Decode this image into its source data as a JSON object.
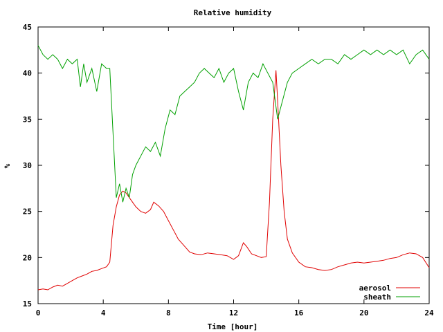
{
  "chart_data": {
    "type": "line",
    "title": "Relative humidity",
    "xlabel": "Time [hour]",
    "ylabel": "%",
    "xlim": [
      0,
      24
    ],
    "ylim": [
      15,
      45
    ],
    "xticks": [
      0,
      4,
      8,
      12,
      16,
      20,
      24
    ],
    "yticks": [
      15,
      20,
      25,
      30,
      35,
      40,
      45
    ],
    "xtick_labels": [
      "0",
      "4",
      "8",
      "12",
      "16",
      "20",
      "24"
    ],
    "ytick_labels": [
      "15",
      "20",
      "25",
      "30",
      "35",
      "40",
      "45"
    ],
    "grid": false,
    "legend_position": "bottom-right",
    "series": [
      {
        "name": "aerosol",
        "color": "#e00000",
        "x": [
          0,
          0.3,
          0.6,
          0.9,
          1.2,
          1.5,
          1.8,
          2.1,
          2.4,
          2.7,
          3.0,
          3.3,
          3.6,
          3.9,
          4.2,
          4.4,
          4.6,
          4.8,
          5.0,
          5.2,
          5.4,
          5.6,
          5.8,
          6.0,
          6.3,
          6.6,
          6.9,
          7.1,
          7.4,
          7.7,
          8.0,
          8.3,
          8.6,
          9.0,
          9.3,
          9.6,
          10.0,
          10.4,
          10.8,
          11.2,
          11.6,
          12.0,
          12.3,
          12.6,
          12.8,
          13.1,
          13.4,
          13.7,
          14.0,
          14.2,
          14.4,
          14.6,
          14.7,
          14.9,
          15.1,
          15.3,
          15.6,
          16.0,
          16.4,
          16.8,
          17.2,
          17.6,
          18.0,
          18.4,
          18.8,
          19.2,
          19.6,
          20.0,
          20.4,
          20.8,
          21.2,
          21.6,
          22.0,
          22.4,
          22.8,
          23.2,
          23.6,
          24.0
        ],
        "values": [
          16.5,
          16.6,
          16.5,
          16.8,
          17.0,
          16.9,
          17.2,
          17.5,
          17.8,
          18.0,
          18.2,
          18.5,
          18.6,
          18.8,
          19.0,
          19.5,
          23.5,
          25.5,
          26.8,
          27.2,
          27.0,
          26.5,
          26.0,
          25.5,
          25.0,
          24.8,
          25.2,
          26.0,
          25.6,
          25.0,
          24.0,
          23.0,
          22.0,
          21.2,
          20.6,
          20.4,
          20.3,
          20.5,
          20.4,
          20.3,
          20.2,
          19.8,
          20.2,
          21.6,
          21.2,
          20.4,
          20.2,
          20.0,
          20.1,
          26.0,
          35.0,
          40.3,
          37.0,
          30.0,
          25.0,
          22.0,
          20.5,
          19.5,
          19.0,
          18.9,
          18.7,
          18.6,
          18.7,
          19.0,
          19.2,
          19.4,
          19.5,
          19.4,
          19.5,
          19.6,
          19.7,
          19.9,
          20.0,
          20.3,
          20.5,
          20.4,
          20.0,
          18.9
        ]
      },
      {
        "name": "sheath",
        "color": "#00a000",
        "x": [
          0,
          0.3,
          0.6,
          0.9,
          1.2,
          1.5,
          1.8,
          2.1,
          2.4,
          2.6,
          2.8,
          3.0,
          3.3,
          3.6,
          3.9,
          4.2,
          4.4,
          4.8,
          5.0,
          5.2,
          5.4,
          5.6,
          5.8,
          6.0,
          6.3,
          6.6,
          6.9,
          7.2,
          7.5,
          7.8,
          8.1,
          8.4,
          8.7,
          9.0,
          9.3,
          9.6,
          9.9,
          10.2,
          10.5,
          10.8,
          11.1,
          11.4,
          11.7,
          12.0,
          12.3,
          12.6,
          12.9,
          13.2,
          13.5,
          13.8,
          14.1,
          14.4,
          14.7,
          15.0,
          15.3,
          15.6,
          16.0,
          16.4,
          16.8,
          17.2,
          17.6,
          18.0,
          18.4,
          18.8,
          19.2,
          19.6,
          20.0,
          20.4,
          20.8,
          21.2,
          21.6,
          22.0,
          22.4,
          22.8,
          23.2,
          23.6,
          24.0
        ],
        "values": [
          43.0,
          42.0,
          41.5,
          42.0,
          41.5,
          40.5,
          41.5,
          41.0,
          41.5,
          38.5,
          41.0,
          39.0,
          40.5,
          38.0,
          41.0,
          40.5,
          40.5,
          26.5,
          28.0,
          26.0,
          27.5,
          26.5,
          29.0,
          30.0,
          31.0,
          32.0,
          31.5,
          32.5,
          31.0,
          34.0,
          36.0,
          35.5,
          37.5,
          38.0,
          38.5,
          39.0,
          40.0,
          40.5,
          40.0,
          39.5,
          40.5,
          39.0,
          40.0,
          40.5,
          38.0,
          36.0,
          39.0,
          40.0,
          39.5,
          41.0,
          40.0,
          39.0,
          35.0,
          37.0,
          39.0,
          40.0,
          40.5,
          41.0,
          41.5,
          41.0,
          41.5,
          41.5,
          41.0,
          42.0,
          41.5,
          42.0,
          42.5,
          42.0,
          42.5,
          42.0,
          42.5,
          42.0,
          42.5,
          41.0,
          42.0,
          42.5,
          41.5
        ]
      }
    ]
  }
}
